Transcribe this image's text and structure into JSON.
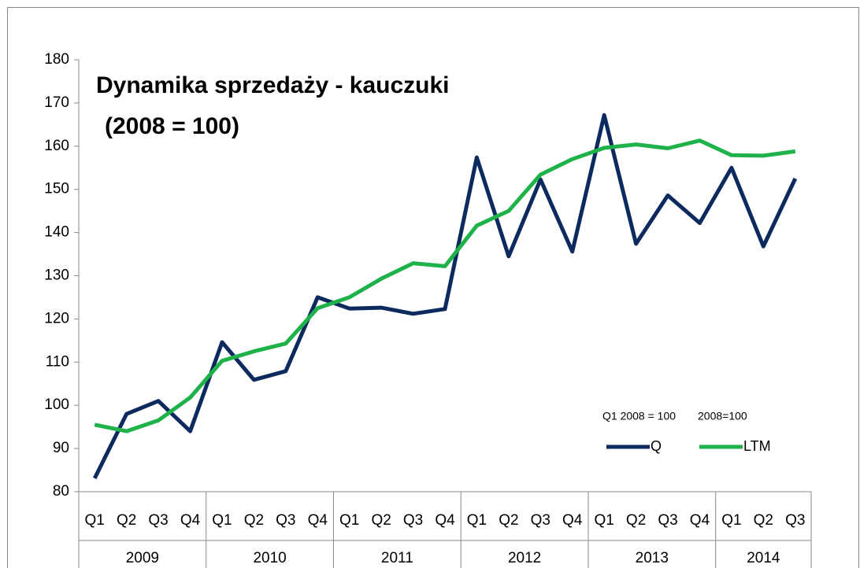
{
  "chart_data": {
    "type": "line",
    "title": [
      "Dynamika sprzedaży - kauczuki",
      "(2008 = 100)"
    ],
    "category_groups": [
      {
        "label": "2009",
        "categories": [
          "Q1",
          "Q2",
          "Q3",
          "Q4"
        ]
      },
      {
        "label": "2010",
        "categories": [
          "Q1",
          "Q2",
          "Q3",
          "Q4"
        ]
      },
      {
        "label": "2011",
        "categories": [
          "Q1",
          "Q2",
          "Q3",
          "Q4"
        ]
      },
      {
        "label": "2012",
        "categories": [
          "Q1",
          "Q2",
          "Q3",
          "Q4"
        ]
      },
      {
        "label": "2013",
        "categories": [
          "Q1",
          "Q2",
          "Q3",
          "Q4"
        ]
      },
      {
        "label": "2014",
        "categories": [
          "Q1",
          "Q2",
          "Q3"
        ]
      }
    ],
    "series": [
      {
        "name": "Q",
        "note": "Q1 2008 = 100",
        "color": "#0d2a5e",
        "values": [
          83.1,
          98,
          101,
          94,
          114.6,
          105.9,
          107.9,
          125,
          122.4,
          122.6,
          121.2,
          122.3,
          157.4,
          134.5,
          152.3,
          135.6,
          167.2,
          137.4,
          148.6,
          142.2,
          155,
          136.8,
          152.5
        ]
      },
      {
        "name": "LTM",
        "note": "2008=100",
        "color": "#1fb24a",
        "values": [
          95.5,
          94,
          96.5,
          101.8,
          110.3,
          112.5,
          114.3,
          122.5,
          125,
          129.3,
          132.9,
          132.2,
          141.6,
          145,
          153.4,
          157,
          159.6,
          160.4,
          159.5,
          161.3,
          157.9,
          157.8,
          158.8
        ]
      }
    ],
    "ylim": [
      80,
      180
    ],
    "yticks": [
      80,
      90,
      100,
      110,
      120,
      130,
      140,
      150,
      160,
      170,
      180
    ],
    "grid": false
  }
}
